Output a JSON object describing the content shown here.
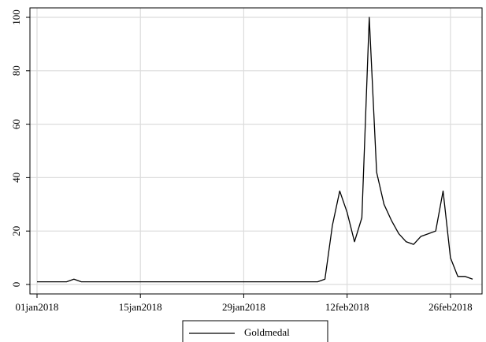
{
  "chart_data": {
    "type": "line",
    "x": [
      "2018-01-01",
      "2018-01-02",
      "2018-01-03",
      "2018-01-04",
      "2018-01-05",
      "2018-01-06",
      "2018-01-07",
      "2018-01-08",
      "2018-01-09",
      "2018-01-10",
      "2018-01-11",
      "2018-01-12",
      "2018-01-13",
      "2018-01-14",
      "2018-01-15",
      "2018-01-16",
      "2018-01-17",
      "2018-01-18",
      "2018-01-19",
      "2018-01-20",
      "2018-01-21",
      "2018-01-22",
      "2018-01-23",
      "2018-01-24",
      "2018-01-25",
      "2018-01-26",
      "2018-01-27",
      "2018-01-28",
      "2018-01-29",
      "2018-01-30",
      "2018-01-31",
      "2018-02-01",
      "2018-02-02",
      "2018-02-03",
      "2018-02-04",
      "2018-02-05",
      "2018-02-06",
      "2018-02-07",
      "2018-02-08",
      "2018-02-09",
      "2018-02-10",
      "2018-02-11",
      "2018-02-12",
      "2018-02-13",
      "2018-02-14",
      "2018-02-15",
      "2018-02-16",
      "2018-02-17",
      "2018-02-18",
      "2018-02-19",
      "2018-02-20",
      "2018-02-21",
      "2018-02-22",
      "2018-02-23",
      "2018-02-24",
      "2018-02-25",
      "2018-02-26",
      "2018-02-27",
      "2018-02-28",
      "2018-03-01"
    ],
    "series": [
      {
        "name": "Goldmedal",
        "color": "#000000",
        "values": [
          1,
          1,
          1,
          1,
          1,
          2,
          1,
          1,
          1,
          1,
          1,
          1,
          1,
          1,
          1,
          1,
          1,
          1,
          1,
          1,
          1,
          1,
          1,
          1,
          1,
          1,
          1,
          1,
          1,
          1,
          1,
          1,
          1,
          1,
          1,
          1,
          1,
          1,
          1,
          2,
          22,
          35,
          27,
          16,
          25,
          100,
          42,
          30,
          24,
          19,
          16,
          15,
          18,
          19,
          20,
          35,
          10,
          3,
          3,
          2
        ]
      }
    ],
    "xlim": [
      "2018-01-01",
      "2018-03-01"
    ],
    "xticks": [
      {
        "value": "2018-01-01",
        "label": "01jan2018"
      },
      {
        "value": "2018-01-15",
        "label": "15jan2018"
      },
      {
        "value": "2018-01-29",
        "label": "29jan2018"
      },
      {
        "value": "2018-02-12",
        "label": "12feb2018"
      },
      {
        "value": "2018-02-26",
        "label": "26feb2018"
      }
    ],
    "ylim": [
      0,
      100
    ],
    "yticks": [
      0,
      20,
      40,
      60,
      80,
      100
    ],
    "grid": true
  }
}
